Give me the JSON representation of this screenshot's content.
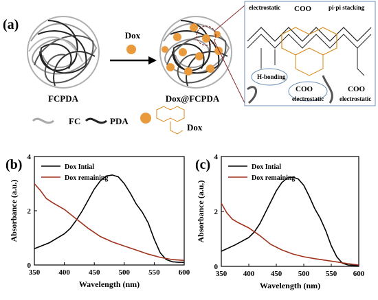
{
  "panel_labels": {
    "a": "(a)",
    "b": "(b)",
    "c": "(c)"
  },
  "schematic": {
    "left_label": "FCPDA",
    "right_label": "Dox@FCPDA",
    "arrow_label": "Dox",
    "legend_fc": "FC",
    "legend_pda": "PDA",
    "legend_dox": "Dox",
    "colors": {
      "dox_particle": "#e89a3c",
      "fc_strand": "#a8a8a8",
      "pda_strand": "#222222",
      "callout": "#8b2a2a",
      "molecule_orange": "#d98a1a"
    },
    "inset": {
      "labels": {
        "electrostatic_top": "electrostatic",
        "coo_top": "COO",
        "pi_stacking": "pi-pi stacking",
        "h_bonding": "H-bonding",
        "coo_bottom": "COO",
        "electrostatic_bottom": "electrostatic",
        "coo_right": "COO",
        "electrostatic_right": "electrostatic"
      }
    }
  },
  "chart_data": [
    {
      "type": "line",
      "panel": "(b)",
      "xlabel": "Wavelength (nm)",
      "ylabel": "Absorbance (a.u.)",
      "xlim": [
        350,
        600
      ],
      "ylim": [
        0,
        4
      ],
      "xticks": [
        350,
        400,
        450,
        500,
        550,
        600
      ],
      "yticks": [
        0,
        2,
        4
      ],
      "legend_position": "top-left",
      "series": [
        {
          "name": "Dox Intial",
          "color": "#000000",
          "x": [
            350,
            375,
            400,
            410,
            420,
            430,
            440,
            450,
            460,
            470,
            480,
            490,
            500,
            510,
            520,
            530,
            540,
            550,
            560,
            570,
            580,
            590,
            600
          ],
          "y": [
            0.6,
            0.82,
            1.15,
            1.35,
            1.65,
            2.0,
            2.4,
            2.8,
            3.1,
            3.28,
            3.32,
            3.25,
            3.0,
            2.65,
            2.25,
            1.95,
            1.55,
            0.95,
            0.45,
            0.2,
            0.12,
            0.1,
            0.1
          ]
        },
        {
          "name": "Dox remaining",
          "color": "#a0321e",
          "x": [
            350,
            360,
            370,
            380,
            400,
            420,
            440,
            460,
            480,
            500,
            520,
            540,
            560,
            580,
            600
          ],
          "y": [
            3.0,
            2.75,
            2.45,
            2.3,
            2.05,
            1.7,
            1.35,
            1.05,
            0.85,
            0.7,
            0.55,
            0.4,
            0.28,
            0.2,
            0.17
          ]
        }
      ]
    },
    {
      "type": "line",
      "panel": "(c)",
      "xlabel": "Wavelength (nm)",
      "ylabel": "Absorbance (a.u.)",
      "xlim": [
        350,
        600
      ],
      "ylim": [
        0,
        4
      ],
      "xticks": [
        350,
        400,
        450,
        500,
        550,
        600
      ],
      "yticks": [
        0,
        2,
        4
      ],
      "legend_position": "top-left",
      "series": [
        {
          "name": "Dox Intial",
          "color": "#000000",
          "x": [
            350,
            375,
            400,
            410,
            420,
            430,
            440,
            450,
            460,
            470,
            480,
            490,
            500,
            510,
            520,
            530,
            540,
            550,
            560,
            570,
            580,
            590,
            600
          ],
          "y": [
            0.55,
            0.78,
            1.05,
            1.25,
            1.55,
            1.95,
            2.35,
            2.75,
            3.05,
            3.22,
            3.25,
            3.18,
            2.95,
            2.55,
            2.1,
            1.75,
            1.3,
            0.75,
            0.35,
            0.12,
            0.05,
            0.04,
            0.03
          ]
        },
        {
          "name": "Dox remaining",
          "color": "#a0321e",
          "x": [
            350,
            360,
            370,
            380,
            400,
            420,
            440,
            460,
            480,
            500,
            520,
            540,
            560,
            580,
            600
          ],
          "y": [
            2.3,
            1.95,
            1.72,
            1.6,
            1.4,
            1.12,
            0.8,
            0.6,
            0.45,
            0.35,
            0.28,
            0.22,
            0.16,
            0.1,
            0.05
          ]
        }
      ]
    }
  ]
}
